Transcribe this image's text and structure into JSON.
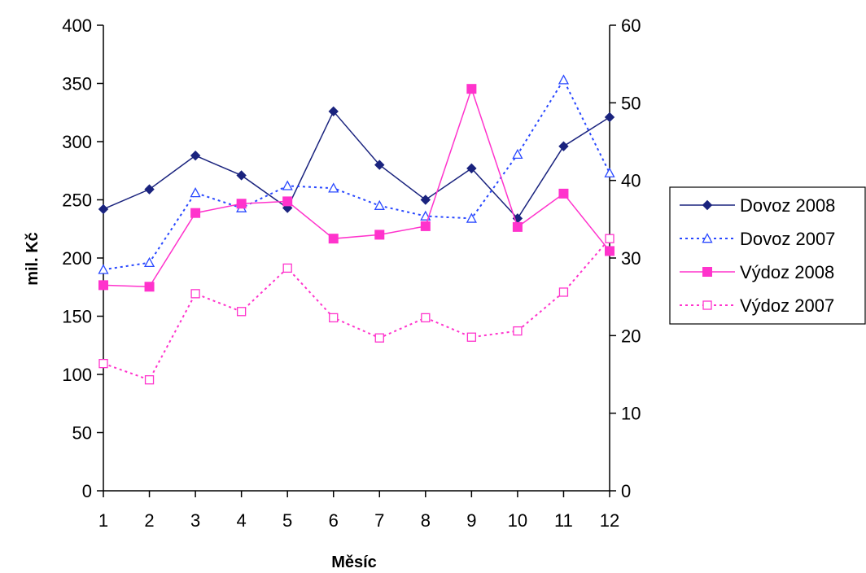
{
  "chart_data": {
    "type": "line",
    "xlabel": "Měsíc",
    "ylabel": "mil. Kč",
    "categories": [
      "1",
      "2",
      "3",
      "4",
      "5",
      "6",
      "7",
      "8",
      "9",
      "10",
      "11",
      "12"
    ],
    "yticks_left": [
      "0",
      "50",
      "100",
      "150",
      "200",
      "250",
      "300",
      "350",
      "400"
    ],
    "yticks_right": [
      "0",
      "10",
      "20",
      "30",
      "40",
      "50",
      "60"
    ],
    "ylim_left": [
      0,
      400
    ],
    "ylim_right": [
      0,
      60
    ],
    "grid": false,
    "legend_position": "right",
    "series": [
      {
        "name": "Dovoz 2008",
        "axis": "left",
        "color": "#1a237e",
        "line_style": "solid",
        "marker": "diamond-filled",
        "values": [
          242,
          259,
          288,
          271,
          243,
          326,
          280,
          250,
          277,
          234,
          296,
          321
        ]
      },
      {
        "name": "Dovoz 2007",
        "axis": "left",
        "color": "#2948ff",
        "line_style": "dotted",
        "marker": "triangle-open",
        "values": [
          190,
          196,
          256,
          243,
          262,
          260,
          245,
          236,
          234,
          289,
          353,
          273
        ]
      },
      {
        "name": "Výdoz 2008",
        "axis": "right",
        "color": "#ff33cc",
        "line_style": "solid",
        "marker": "square-filled",
        "values": [
          26.5,
          26.3,
          35.8,
          37.0,
          37.3,
          32.5,
          33.0,
          34.1,
          51.8,
          34.0,
          38.3,
          30.9
        ]
      },
      {
        "name": "Výdoz 2007",
        "axis": "right",
        "color": "#ff33cc",
        "line_style": "dotted",
        "marker": "square-open",
        "values": [
          16.4,
          14.3,
          25.4,
          23.1,
          28.7,
          22.3,
          19.7,
          22.3,
          19.8,
          20.6,
          25.6,
          32.5
        ]
      }
    ]
  }
}
